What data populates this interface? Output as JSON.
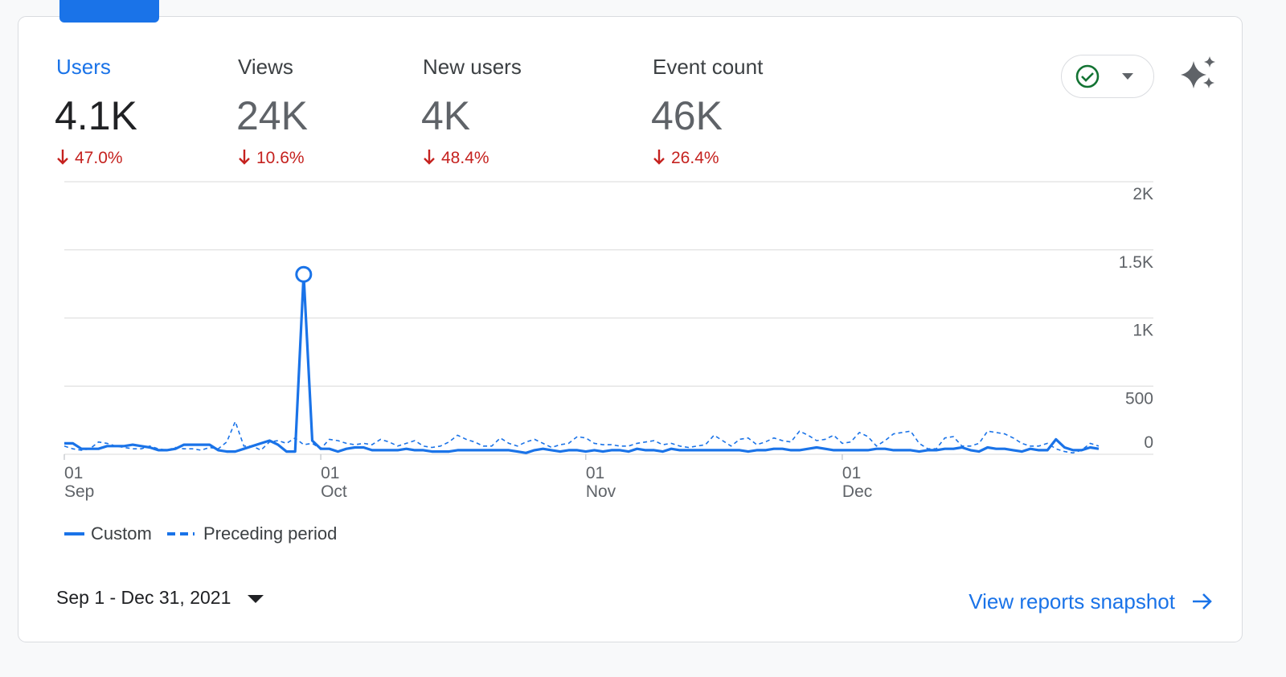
{
  "metrics": [
    {
      "label": "Users",
      "value": "4.1K",
      "change": "47.0%"
    },
    {
      "label": "Views",
      "value": "24K",
      "change": "10.6%"
    },
    {
      "label": "New users",
      "value": "4K",
      "change": "48.4%"
    },
    {
      "label": "Event count",
      "value": "46K",
      "change": "26.4%"
    }
  ],
  "chart_data": {
    "type": "line",
    "categories": [
      "01 Sep",
      null,
      null,
      null,
      null,
      null,
      null,
      null,
      null,
      null,
      null,
      null,
      null,
      null,
      null,
      null,
      null,
      null,
      null,
      null,
      null,
      null,
      null,
      null,
      null,
      null,
      null,
      null,
      null,
      null,
      "01 Oct",
      null,
      null,
      null,
      null,
      null,
      null,
      null,
      null,
      null,
      null,
      null,
      null,
      null,
      null,
      null,
      null,
      null,
      null,
      null,
      null,
      null,
      null,
      null,
      null,
      null,
      null,
      null,
      null,
      null,
      null,
      "01 Nov",
      null,
      null,
      null,
      null,
      null,
      null,
      null,
      null,
      null,
      null,
      null,
      null,
      null,
      null,
      null,
      null,
      null,
      null,
      null,
      null,
      null,
      null,
      null,
      null,
      null,
      null,
      null,
      null,
      null,
      "01 Dec",
      null,
      null,
      null,
      null,
      null,
      null,
      null,
      null,
      null,
      null,
      null,
      null,
      null,
      null,
      null,
      null,
      null,
      null,
      null,
      null,
      null,
      null,
      null,
      null,
      null,
      null,
      null,
      null,
      null,
      null
    ],
    "series": [
      {
        "name": "Custom",
        "color": "#1a73e8",
        "line_style": "solid",
        "values": [
          80,
          80,
          40,
          40,
          40,
          60,
          60,
          60,
          70,
          60,
          50,
          30,
          30,
          40,
          70,
          70,
          70,
          70,
          30,
          20,
          20,
          40,
          60,
          80,
          100,
          70,
          20,
          20,
          1320,
          100,
          40,
          40,
          20,
          40,
          50,
          50,
          30,
          30,
          30,
          30,
          40,
          30,
          30,
          20,
          20,
          20,
          30,
          30,
          30,
          30,
          30,
          30,
          30,
          20,
          10,
          30,
          40,
          30,
          20,
          30,
          30,
          20,
          30,
          20,
          30,
          30,
          20,
          40,
          30,
          30,
          20,
          40,
          30,
          30,
          30,
          30,
          30,
          30,
          30,
          30,
          20,
          30,
          30,
          40,
          40,
          30,
          30,
          40,
          50,
          40,
          30,
          30,
          30,
          30,
          30,
          40,
          40,
          30,
          30,
          30,
          20,
          30,
          30,
          40,
          40,
          50,
          30,
          20,
          50,
          40,
          40,
          30,
          20,
          40,
          30,
          30,
          110,
          50,
          30,
          30,
          50,
          40
        ]
      },
      {
        "name": "Preceding period",
        "color": "#1a73e8",
        "line_style": "dashed",
        "values": [
          60,
          40,
          30,
          40,
          90,
          80,
          60,
          50,
          40,
          40,
          60,
          40,
          30,
          50,
          40,
          40,
          30,
          50,
          40,
          90,
          240,
          60,
          60,
          30,
          90,
          100,
          80,
          120,
          70,
          80,
          40,
          110,
          100,
          80,
          70,
          80,
          70,
          110,
          90,
          60,
          80,
          100,
          60,
          50,
          60,
          90,
          140,
          110,
          90,
          60,
          60,
          120,
          80,
          60,
          90,
          110,
          80,
          50,
          70,
          80,
          130,
          120,
          80,
          70,
          70,
          60,
          60,
          80,
          90,
          100,
          70,
          80,
          60,
          50,
          60,
          70,
          140,
          100,
          60,
          110,
          120,
          70,
          90,
          120,
          100,
          90,
          170,
          140,
          100,
          110,
          140,
          80,
          90,
          160,
          130,
          60,
          100,
          150,
          160,
          170,
          80,
          40,
          40,
          120,
          130,
          60,
          60,
          80,
          170,
          160,
          150,
          120,
          80,
          60,
          60,
          80,
          40,
          20,
          10,
          30,
          80,
          60
        ]
      }
    ],
    "ylim": [
      0,
      2000
    ],
    "yticks": [
      0,
      500,
      {
        "value": 1000,
        "label": "1K"
      },
      {
        "value": 1500,
        "label": "1.5K"
      },
      {
        "value": 2000,
        "label": "2K"
      }
    ],
    "grid": true,
    "highlight_index": 28
  },
  "date_range": "Sep 1 - Dec 31, 2021",
  "link": "View reports snapshot"
}
